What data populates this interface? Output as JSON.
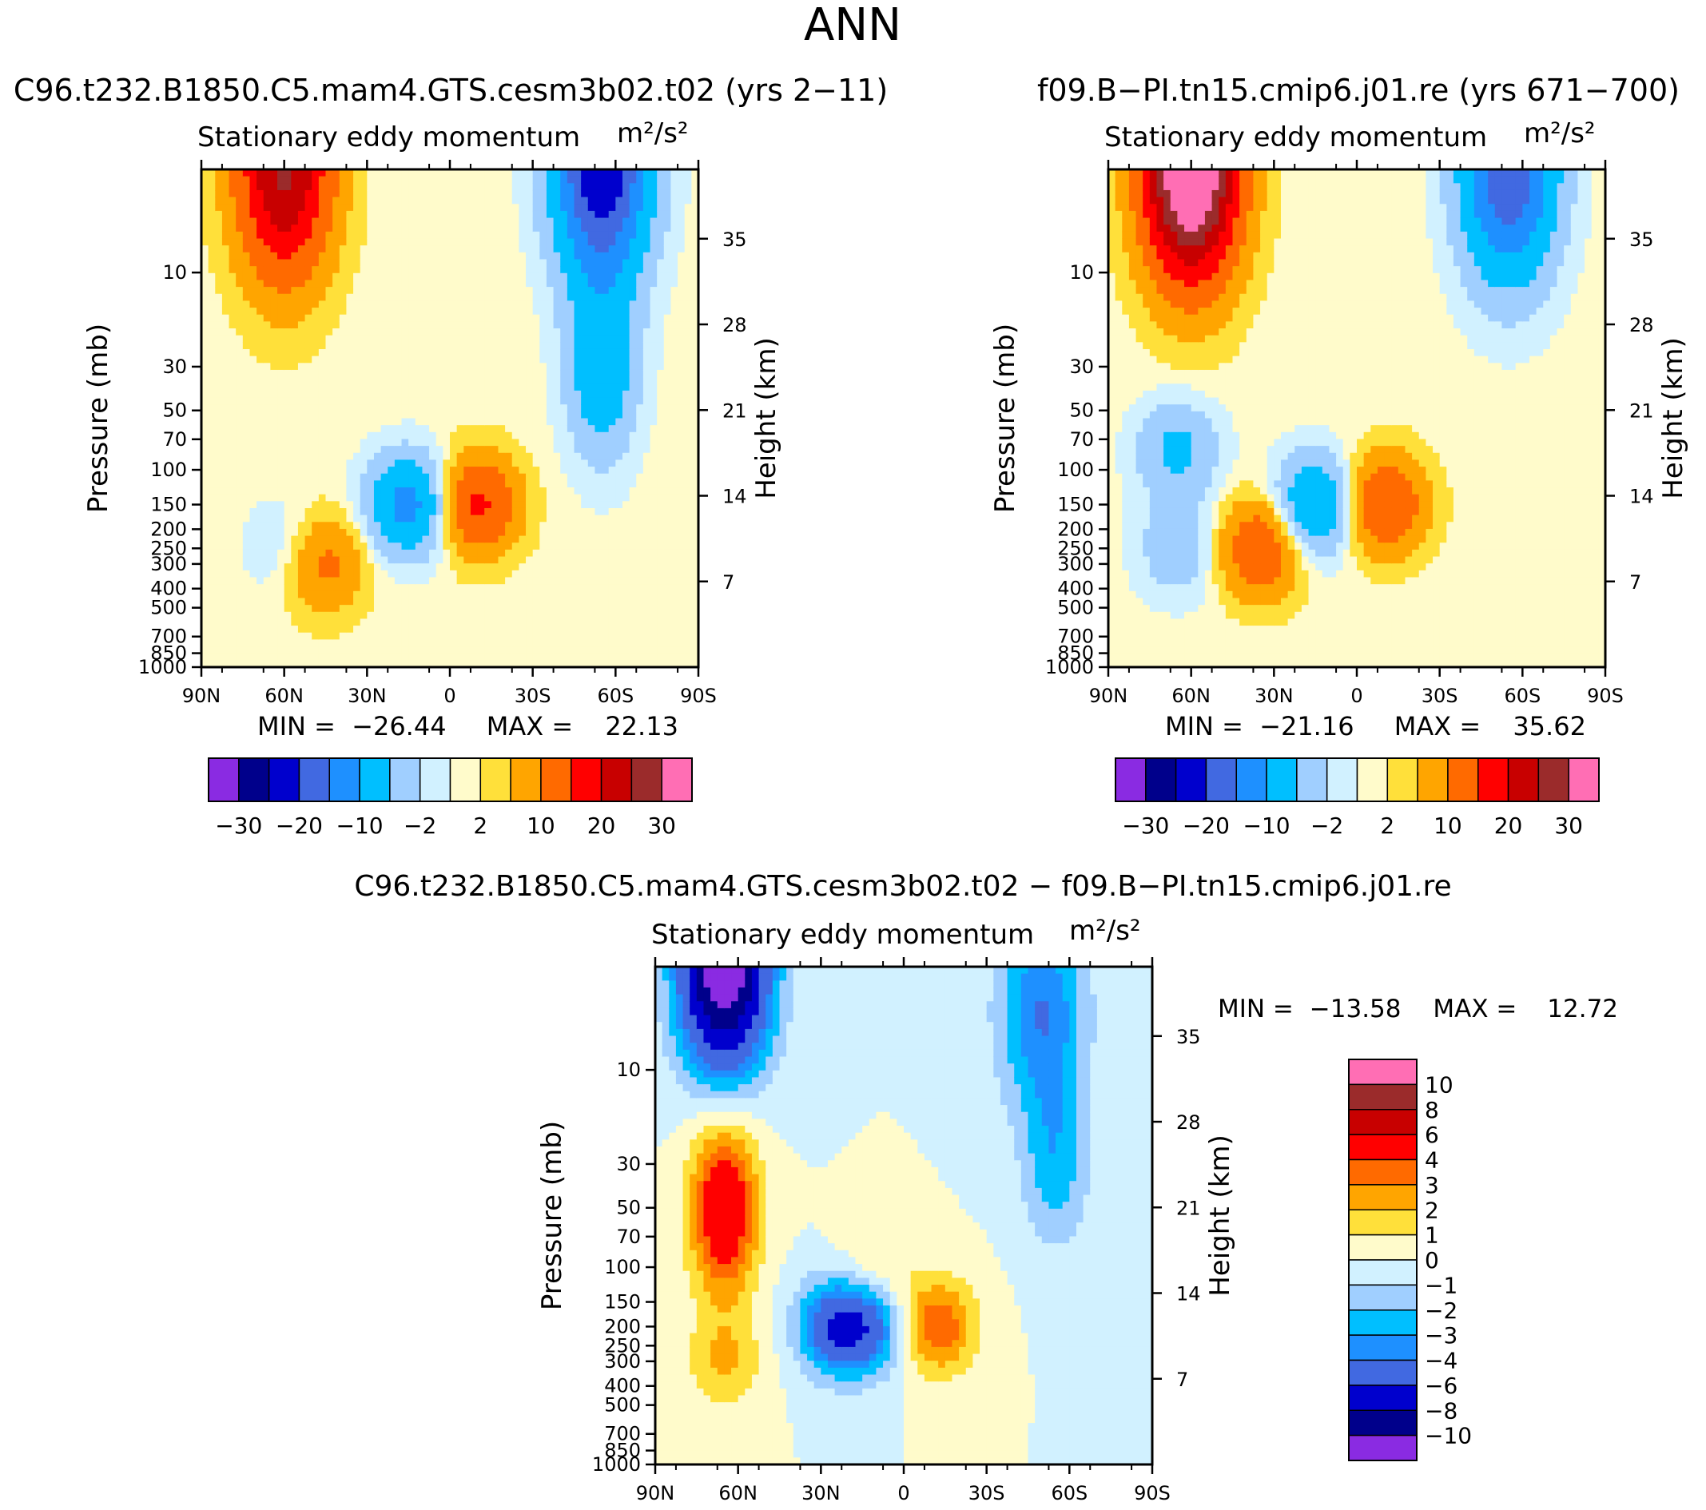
{
  "season": "ANN",
  "panels": [
    {
      "id": "test",
      "case_title": "C96.t232.B1850.C5.mam4.GTS.cesm3b02.t02 (yrs 2−11)",
      "var_title": "Stationary eddy momentum",
      "units": "m²/s²",
      "min_label": "MIN =",
      "min_value": "−26.44",
      "max_label": "MAX =",
      "max_value": "22.13"
    },
    {
      "id": "ref",
      "case_title": "f09.B−PI.tn15.cmip6.j01.re (yrs 671−700)",
      "var_title": "Stationary eddy momentum",
      "units": "m²/s²",
      "min_label": "MIN =",
      "min_value": "−21.16",
      "max_label": "MAX =",
      "max_value": "35.62"
    },
    {
      "id": "diff",
      "case_title": "C96.t232.B1850.C5.mam4.GTS.cesm3b02.t02 − f09.B−PI.tn15.cmip6.j01.re",
      "var_title": "Stationary eddy momentum",
      "units": "m²/s²",
      "min_label": "MIN =",
      "min_value": "−13.58",
      "max_label": "MAX =",
      "max_value": "12.72"
    }
  ],
  "axis": {
    "ylabel_left": "Pressure (mb)",
    "ylabel_right": "Height (km)",
    "pressure_ticks": [
      1000,
      850,
      700,
      500,
      400,
      300,
      250,
      200,
      150,
      100,
      70,
      50,
      30,
      10
    ],
    "height_ticks": [
      7,
      14,
      21,
      28,
      35
    ],
    "lat_ticks": [
      "90N",
      "60N",
      "30N",
      "0",
      "30S",
      "60S",
      "90S"
    ]
  },
  "colorbars": {
    "main": {
      "colors": [
        "#8a2be2",
        "#00008b",
        "#0000cd",
        "#4169e1",
        "#1e90ff",
        "#00bfff",
        "#a0cfff",
        "#d1f1ff",
        "#fffbcb",
        "#ffe03a",
        "#ffa500",
        "#ff6a00",
        "#ff0000",
        "#c80000",
        "#9b2b2b",
        "#ff6eb4"
      ],
      "labels": [
        "−30",
        "−20",
        "−10",
        "−2",
        "2",
        "10",
        "20",
        "30"
      ]
    },
    "diff": {
      "colors": [
        "#ff6eb4",
        "#9b2b2b",
        "#c80000",
        "#ff0000",
        "#ff6a00",
        "#ffa500",
        "#ffe03a",
        "#fffbcb",
        "#d1f1ff",
        "#a0cfff",
        "#00bfff",
        "#1e90ff",
        "#4169e1",
        "#0000cd",
        "#00008b",
        "#8a2be2"
      ],
      "labels": [
        "10",
        "8",
        "6",
        "4",
        "3",
        "2",
        "1",
        "0",
        "−1",
        "−2",
        "−3",
        "−4",
        "−6",
        "−8",
        "−10"
      ]
    }
  },
  "chart_data": [
    {
      "type": "heatmap",
      "panel": "test",
      "title": "Stationary eddy momentum",
      "units": "m²/s²",
      "x": "latitude 90N → 90S",
      "y": "pressure 1000 → ~3 mb (log)",
      "min": -26.44,
      "max": 22.13,
      "features": [
        {
          "lat": 60,
          "p": 3,
          "value": 21
        },
        {
          "lat": -55,
          "p": 3,
          "value": -25
        },
        {
          "lat": -55,
          "p": 30,
          "value": -9
        },
        {
          "lat": 45,
          "p": 300,
          "value": 6
        },
        {
          "lat": -10,
          "p": 150,
          "value": 11
        },
        {
          "lat": 15,
          "p": 150,
          "value": -12
        },
        {
          "lat": 60,
          "p": 250,
          "value": -2
        }
      ],
      "levels": [
        -30,
        -25,
        -20,
        -15,
        -10,
        -5,
        -2,
        -0.5,
        0.5,
        2,
        5,
        10,
        15,
        20,
        25,
        30
      ]
    },
    {
      "type": "heatmap",
      "panel": "ref",
      "title": "Stationary eddy momentum",
      "units": "m²/s²",
      "x": "latitude 90N → 90S",
      "y": "pressure 1000 → ~3 mb (log)",
      "min": -21.16,
      "max": 35.62,
      "features": [
        {
          "lat": 60,
          "p": 3,
          "value": 35
        },
        {
          "lat": -55,
          "p": 3,
          "value": -20
        },
        {
          "lat": 65,
          "p": 80,
          "value": -6
        },
        {
          "lat": 65,
          "p": 250,
          "value": -4
        },
        {
          "lat": 35,
          "p": 250,
          "value": 9
        },
        {
          "lat": -10,
          "p": 150,
          "value": 10
        },
        {
          "lat": 15,
          "p": 150,
          "value": -10
        }
      ],
      "levels": [
        -30,
        -25,
        -20,
        -15,
        -10,
        -5,
        -2,
        -0.5,
        0.5,
        2,
        5,
        10,
        15,
        20,
        25,
        30
      ]
    },
    {
      "type": "heatmap",
      "panel": "diff",
      "title": "Stationary eddy momentum",
      "units": "m²/s²",
      "x": "latitude 90N → 90S",
      "y": "pressure 1000 → ~3 mb (log)",
      "min": -13.58,
      "max": 12.72,
      "features": [
        {
          "lat": 65,
          "p": 3,
          "value": -12
        },
        {
          "lat": 65,
          "p": 50,
          "value": 6
        },
        {
          "lat": 65,
          "p": 300,
          "value": 2
        },
        {
          "lat": 25,
          "p": 200,
          "value": -5
        },
        {
          "lat": 12,
          "p": 200,
          "value": -4
        },
        {
          "lat": -12,
          "p": 200,
          "value": 4
        },
        {
          "lat": -50,
          "p": 5,
          "value": -4
        },
        {
          "lat": -55,
          "p": 30,
          "value": -2.5
        },
        {
          "lat": 10,
          "p": 110,
          "value": 1.5
        }
      ],
      "levels": [
        -10,
        -8,
        -6,
        -4,
        -3,
        -2,
        -1,
        0,
        1,
        2,
        3,
        4,
        6,
        8,
        10
      ]
    }
  ]
}
